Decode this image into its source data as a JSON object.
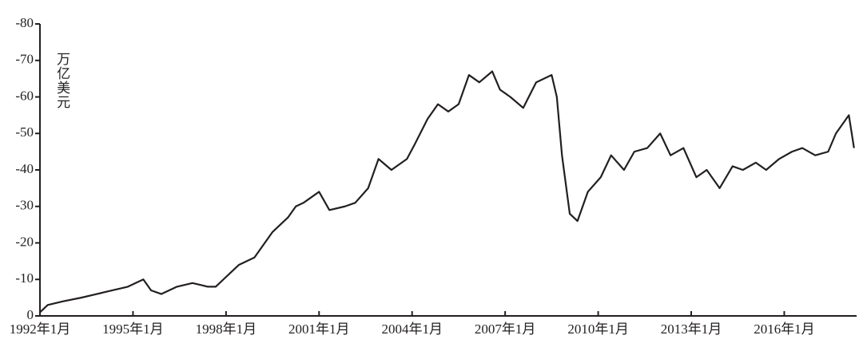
{
  "chart_data": {
    "type": "line",
    "ylabel": "万亿美元",
    "x": [
      "1992-01",
      "1992-04",
      "1992-10",
      "1993-05",
      "1993-11",
      "1994-05",
      "1994-11",
      "1995-05",
      "1995-08",
      "1995-12",
      "1996-06",
      "1996-12",
      "1997-06",
      "1997-09",
      "1997-12",
      "1998-03",
      "1998-06",
      "1998-12",
      "1999-07",
      "2000-01",
      "2000-04",
      "2000-07",
      "2001-01",
      "2001-05",
      "2001-11",
      "2002-03",
      "2002-08",
      "2002-12",
      "2003-05",
      "2003-11",
      "2004-02",
      "2004-07",
      "2004-11",
      "2005-03",
      "2005-07",
      "2005-11",
      "2006-03",
      "2006-08",
      "2006-11",
      "2007-03",
      "2007-08",
      "2008-01",
      "2008-07",
      "2008-09",
      "2008-11",
      "2009-02",
      "2009-05",
      "2009-09",
      "2010-02",
      "2010-06",
      "2010-11",
      "2011-03",
      "2011-08",
      "2012-01",
      "2012-05",
      "2012-10",
      "2013-03",
      "2013-07",
      "2013-12",
      "2014-05",
      "2014-09",
      "2015-02",
      "2015-06",
      "2015-11",
      "2016-04",
      "2016-08",
      "2017-01",
      "2017-06",
      "2017-09",
      "2018-02",
      "2018-04"
    ],
    "series": [
      {
        "color": "#231f20",
        "values": [
          -1,
          -3,
          -4,
          -5,
          -6,
          -7,
          -8,
          -10,
          -7,
          -6,
          -8,
          -9,
          -8,
          -8,
          -10,
          -12,
          -14,
          -16,
          -23,
          -27,
          -30,
          -31,
          -34,
          -29,
          -30,
          -31,
          -35,
          -43,
          -40,
          -43,
          -47,
          -54,
          -58,
          -56,
          -58,
          -66,
          -64,
          -67,
          -62,
          -60,
          -57,
          -64,
          -66,
          -60,
          -44,
          -28,
          -26,
          -34,
          -38,
          -44,
          -40,
          -45,
          -46,
          -50,
          -44,
          -46,
          -38,
          -40,
          -35,
          -41,
          -40,
          -42,
          -40,
          -43,
          -45,
          -46,
          -44,
          -45,
          -50,
          -55,
          -46
        ]
      }
    ],
    "xlim": [
      "1992-01",
      "2018-05"
    ],
    "xticks": [
      {
        "value": "1992-01",
        "label": "1992年1月"
      },
      {
        "value": "1995-01",
        "label": "1995年1月"
      },
      {
        "value": "1998-01",
        "label": "1998年1月"
      },
      {
        "value": "2001-01",
        "label": "2001年1月"
      },
      {
        "value": "2004-01",
        "label": "2004年1月"
      },
      {
        "value": "2007-01",
        "label": "2007年1月"
      },
      {
        "value": "2010-01",
        "label": "2010年1月"
      },
      {
        "value": "2013-01",
        "label": "2013年1月"
      },
      {
        "value": "2016-01",
        "label": "2016年1月"
      }
    ],
    "ylim": [
      0,
      -80
    ],
    "yticks": [
      0,
      -10,
      -20,
      -30,
      -40,
      -50,
      -60,
      -70,
      -80
    ]
  }
}
